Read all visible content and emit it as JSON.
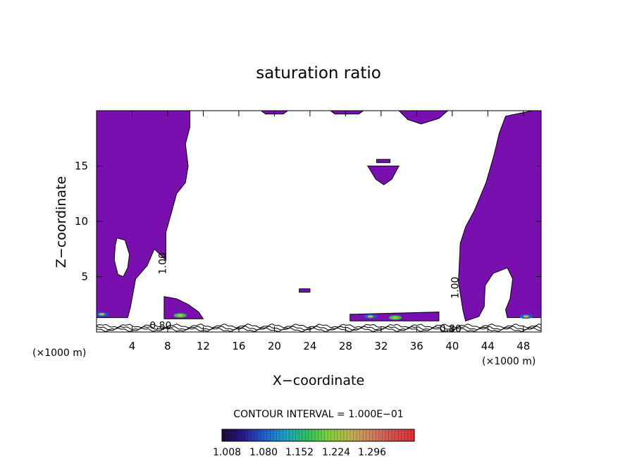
{
  "chart_data": {
    "type": "heatmap",
    "title": "saturation ratio",
    "xlabel": "X−coordinate",
    "ylabel": "Z−coordinate",
    "x_unit_label_left": "(×1000 m)",
    "x_unit_label_right": "(×1000 m)",
    "xlim": [
      0,
      50
    ],
    "ylim": [
      0,
      20
    ],
    "x_ticks": [
      4,
      8,
      12,
      16,
      20,
      24,
      28,
      32,
      36,
      40,
      44,
      48
    ],
    "x_tick_labels": [
      "4",
      "8",
      "12",
      "16",
      "20",
      "24",
      "28",
      "32",
      "36",
      "40",
      "44",
      "48"
    ],
    "y_ticks": [
      5,
      10,
      15
    ],
    "y_tick_labels": [
      "5",
      "10",
      "15"
    ],
    "contour_interval_text": "CONTOUR INTERVAL = 1.000E−01",
    "colorbar_ticks": [
      "1.008",
      "1.080",
      "1.152",
      "1.224",
      "1.296"
    ],
    "colorbar_range": [
      1.0,
      1.32
    ],
    "colorbar_colors": [
      "#1a0a3a",
      "#2a1a8a",
      "#2060d0",
      "#20a0c0",
      "#30c060",
      "#80d040",
      "#c0b050",
      "#d08060",
      "#d05050",
      "#e03030"
    ],
    "fill_color": "#7a0fb0",
    "contour_labels": [
      {
        "text": "1.00",
        "x": 7.8,
        "y": 6.2,
        "rotate": -90
      },
      {
        "text": "1.00",
        "x": 40.7,
        "y": 4.0,
        "rotate": -90
      },
      {
        "text": "0.80",
        "x": 7.2,
        "y": 0.3,
        "rotate": 0
      },
      {
        "text": "0.80",
        "x": 39.8,
        "y": 0.0,
        "rotate": 0
      }
    ],
    "regions": [
      {
        "name": "left-plume",
        "points": [
          [
            0,
            20
          ],
          [
            10.5,
            20
          ],
          [
            10.5,
            18.5
          ],
          [
            10,
            17
          ],
          [
            10.3,
            15
          ],
          [
            10,
            13.5
          ],
          [
            9,
            12.5
          ],
          [
            8.5,
            11
          ],
          [
            7.8,
            9
          ],
          [
            7.8,
            6.5
          ],
          [
            6.5,
            7.5
          ],
          [
            5.7,
            6
          ],
          [
            4.4,
            4.8
          ],
          [
            3.8,
            2.2
          ],
          [
            3.5,
            1.3
          ],
          [
            0,
            1.3
          ]
        ]
      },
      {
        "name": "left-hole",
        "points": [
          [
            2.3,
            8.5
          ],
          [
            3.2,
            8.3
          ],
          [
            3.7,
            7
          ],
          [
            3.5,
            5.8
          ],
          [
            3.0,
            5.0
          ],
          [
            2.4,
            5.2
          ],
          [
            2.0,
            6.5
          ],
          [
            2.1,
            7.8
          ]
        ]
      },
      {
        "name": "right-plume",
        "points": [
          [
            50,
            20
          ],
          [
            49,
            20
          ],
          [
            46,
            19.5
          ],
          [
            45.3,
            18
          ],
          [
            44.7,
            16
          ],
          [
            43.8,
            13.5
          ],
          [
            42.5,
            11
          ],
          [
            41.5,
            9.5
          ],
          [
            40.9,
            8
          ],
          [
            40.7,
            4.5
          ],
          [
            41.2,
            2.0
          ],
          [
            41.5,
            1.0
          ],
          [
            43,
            1.4
          ],
          [
            43.6,
            2.3
          ],
          [
            43.7,
            4.2
          ],
          [
            44.6,
            5.3
          ],
          [
            46.2,
            5.8
          ],
          [
            46.8,
            4.8
          ],
          [
            46.5,
            3.0
          ],
          [
            46.0,
            2.0
          ],
          [
            46.2,
            1.3
          ],
          [
            50,
            1.3
          ]
        ]
      },
      {
        "name": "top-blob-a",
        "points": [
          [
            18.5,
            20
          ],
          [
            21.5,
            20
          ],
          [
            21.0,
            19.7
          ],
          [
            19.0,
            19.7
          ]
        ]
      },
      {
        "name": "top-blob-b",
        "points": [
          [
            26.3,
            20
          ],
          [
            30.0,
            20
          ],
          [
            29.5,
            19.7
          ],
          [
            26.8,
            19.7
          ]
        ]
      },
      {
        "name": "top-blob-c",
        "points": [
          [
            34.0,
            20
          ],
          [
            39.5,
            20
          ],
          [
            38.5,
            19.3
          ],
          [
            36.5,
            18.8
          ],
          [
            35.0,
            19.2
          ]
        ]
      },
      {
        "name": "mid-cap",
        "points": [
          [
            30.5,
            15.0
          ],
          [
            34.0,
            15.0
          ],
          [
            33.2,
            13.8
          ],
          [
            32.3,
            13.3
          ],
          [
            31.4,
            13.8
          ]
        ]
      },
      {
        "name": "mid-sliver",
        "points": [
          [
            31.5,
            15.6
          ],
          [
            33.0,
            15.6
          ],
          [
            33.0,
            15.3
          ],
          [
            31.5,
            15.3
          ]
        ]
      },
      {
        "name": "small-dot",
        "points": [
          [
            22.8,
            3.9
          ],
          [
            24.0,
            3.9
          ],
          [
            24.0,
            3.6
          ],
          [
            22.8,
            3.6
          ]
        ]
      },
      {
        "name": "low-lobe-8",
        "points": [
          [
            7.6,
            3.2
          ],
          [
            9.0,
            3.0
          ],
          [
            10.3,
            2.5
          ],
          [
            11.5,
            1.8
          ],
          [
            12.0,
            1.2
          ],
          [
            7.6,
            1.2
          ]
        ]
      },
      {
        "name": "low-band-30",
        "points": [
          [
            28.5,
            1.6
          ],
          [
            38.5,
            1.8
          ],
          [
            38.5,
            1.0
          ],
          [
            28.5,
            1.0
          ]
        ]
      }
    ],
    "hotspots": [
      {
        "x": 9.4,
        "y": 1.5,
        "value": 1.152
      },
      {
        "x": 30.8,
        "y": 1.4,
        "value": 1.08
      },
      {
        "x": 33.6,
        "y": 1.3,
        "value": 1.152
      },
      {
        "x": 48.3,
        "y": 1.4,
        "value": 1.08
      },
      {
        "x": 0.6,
        "y": 1.6,
        "value": 1.08
      }
    ]
  }
}
